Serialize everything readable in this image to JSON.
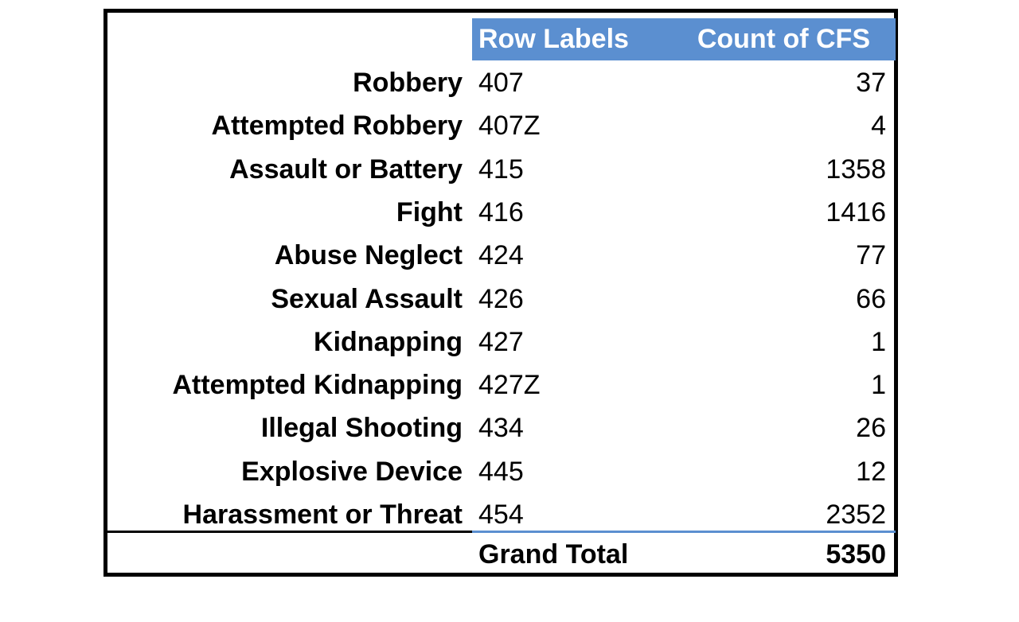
{
  "table": {
    "headers": {
      "row_labels": "Row Labels",
      "count": "Count of CFS"
    },
    "rows": [
      {
        "description": "Robbery",
        "code": "407",
        "count": "37"
      },
      {
        "description": "Attempted Robbery",
        "code": "407Z",
        "count": "4"
      },
      {
        "description": "Assault or Battery",
        "code": "415",
        "count": "1358"
      },
      {
        "description": "Fight",
        "code": "416",
        "count": "1416"
      },
      {
        "description": "Abuse Neglect",
        "code": "424",
        "count": "77"
      },
      {
        "description": "Sexual Assault",
        "code": "426",
        "count": "66"
      },
      {
        "description": "Kidnapping",
        "code": "427",
        "count": "1"
      },
      {
        "description": "Attempted Kidnapping",
        "code": "427Z",
        "count": "1"
      },
      {
        "description": "Illegal Shooting",
        "code": "434",
        "count": "26"
      },
      {
        "description": "Explosive Device",
        "code": "445",
        "count": "12"
      },
      {
        "description": "Harassment or Threat",
        "code": "454",
        "count": "2352"
      }
    ],
    "grand_total": {
      "label": "Grand Total",
      "value": "5350"
    }
  },
  "colors": {
    "header_fill": "#5b8fd0",
    "header_text": "#ffffff",
    "border": "#000000"
  }
}
